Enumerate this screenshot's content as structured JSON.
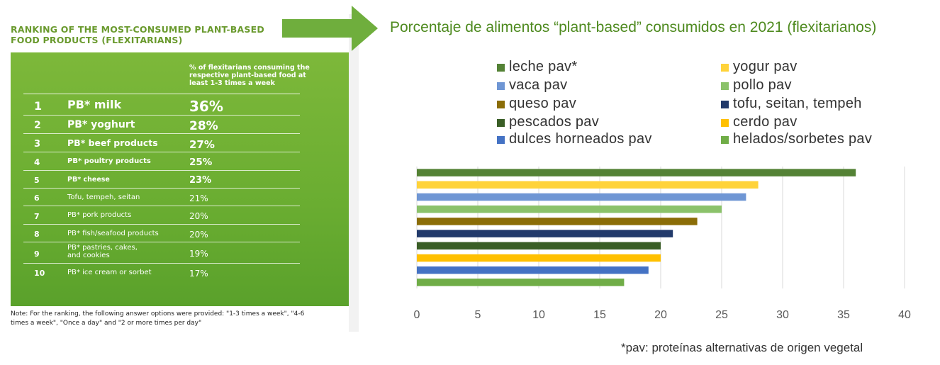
{
  "left_panel": {
    "title": "RANKING OF THE MOST-CONSUMED PLANT-BASED FOOD PRODUCTS (FLEXITARIANS)",
    "column_header": "% of flexitarians consuming the respective plant-based food at least 1-3 times a week",
    "rows": [
      {
        "rank": "1",
        "name": "PB* milk",
        "value": "36%"
      },
      {
        "rank": "2",
        "name": "PB* yoghurt",
        "value": "28%"
      },
      {
        "rank": "3",
        "name": "PB* beef products",
        "value": "27%"
      },
      {
        "rank": "4",
        "name": "PB* poultry products",
        "value": "25%"
      },
      {
        "rank": "5",
        "name": "PB* cheese",
        "value": "23%"
      },
      {
        "rank": "6",
        "name": "Tofu, tempeh, seitan",
        "value": "21%"
      },
      {
        "rank": "7",
        "name": "PB* pork products",
        "value": "20%"
      },
      {
        "rank": "8",
        "name": "PB* fish/seafood products",
        "value": "20%"
      },
      {
        "rank": "9",
        "name": "PB* pastries, cakes,\nand cookies",
        "value": "19%"
      },
      {
        "rank": "10",
        "name": "PB* ice cream or sorbet",
        "value": "17%"
      }
    ],
    "note": "Note: For the ranking, the following answer options were provided: \"1-3 times a week\", \"4-6 times a week\", \"Once a day\" and \"2 or more times per day\""
  },
  "right_title": "Porcentaje de alimentos “plant-based” consumidos en 2021 (flexitarianos)",
  "footnote": "*pav: proteínas alternativas de origen vegetal",
  "chart_data": {
    "type": "bar",
    "orientation": "horizontal",
    "title": "Porcentaje de alimentos “plant-based” consumidos en 2021 (flexitarianos)",
    "series": [
      {
        "name": "leche pav*",
        "value": 36,
        "color": "#548235"
      },
      {
        "name": "yogur pav",
        "value": 28,
        "color": "#FFD33A"
      },
      {
        "name": "vaca pav",
        "value": 27,
        "color": "#6F96D4"
      },
      {
        "name": "pollo pav",
        "value": 25,
        "color": "#8BC26A"
      },
      {
        "name": "queso pav",
        "value": 23,
        "color": "#8B6D07"
      },
      {
        "name": "tofu, seitan, tempeh",
        "value": 21,
        "color": "#223A6B"
      },
      {
        "name": "pescados pav",
        "value": 20,
        "color": "#3A5E26"
      },
      {
        "name": "cerdo pav",
        "value": 20,
        "color": "#FFC000"
      },
      {
        "name": "dulces horneados pav",
        "value": 19,
        "color": "#4472C4"
      },
      {
        "name": "helados/sorbetes pav",
        "value": 17,
        "color": "#70AD47"
      }
    ],
    "xlim": [
      0,
      40
    ],
    "xticks": [
      "0",
      "5",
      "10",
      "15",
      "20",
      "25",
      "30",
      "35",
      "40"
    ],
    "grid": "vertical",
    "legend_placement": "top"
  }
}
